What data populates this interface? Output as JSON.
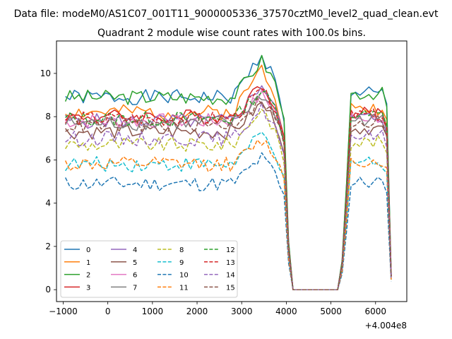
{
  "chart_data": {
    "type": "line",
    "suptitle": "Data file: modeM0/AS1C07_001T11_9000005336_37570cztM0_level2_quad_clean.evt",
    "title": "Quadrant 2 module wise count rates with 100.0s bins.",
    "xlabel": "",
    "ylabel": "",
    "x_offset_label": "+4.004e8",
    "xlim": [
      -1150,
      6700
    ],
    "ylim": [
      -0.55,
      11.5
    ],
    "xticks": [
      -1000,
      0,
      1000,
      2000,
      3000,
      4000,
      5000,
      6000
    ],
    "yticks": [
      0,
      2,
      4,
      6,
      8,
      10
    ],
    "x_tick_labels": [
      "−1000",
      "0",
      "1000",
      "2000",
      "3000",
      "4000",
      "5000",
      "6000"
    ],
    "y_tick_labels": [
      "0",
      "2",
      "4",
      "6",
      "8",
      "10"
    ],
    "x_start": -950,
    "x_step": 100,
    "legend_location": "lower-left",
    "legend_columns": 4,
    "series": [
      {
        "name": "0",
        "color": "#1f77b4",
        "dash": "solid",
        "base": 8.9,
        "peak": 10.9,
        "seed": 1
      },
      {
        "name": "1",
        "color": "#ff7f0e",
        "dash": "solid",
        "base": 8.2,
        "peak": 10.3,
        "seed": 2
      },
      {
        "name": "2",
        "color": "#2ca02c",
        "dash": "solid",
        "base": 8.9,
        "peak": 10.6,
        "seed": 3
      },
      {
        "name": "3",
        "color": "#d62728",
        "dash": "solid",
        "base": 8.0,
        "peak": 9.5,
        "seed": 4
      },
      {
        "name": "4",
        "color": "#9467bd",
        "dash": "solid",
        "base": 7.8,
        "peak": 9.5,
        "seed": 5
      },
      {
        "name": "5",
        "color": "#8c564b",
        "dash": "solid",
        "base": 7.3,
        "peak": 8.6,
        "seed": 6
      },
      {
        "name": "6",
        "color": "#e377c2",
        "dash": "solid",
        "base": 7.8,
        "peak": 9.0,
        "seed": 7
      },
      {
        "name": "7",
        "color": "#7f7f7f",
        "dash": "solid",
        "base": 7.7,
        "peak": 9.0,
        "seed": 8
      },
      {
        "name": "8",
        "color": "#bcbd22",
        "dash": "dashed",
        "base": 6.7,
        "peak": 8.4,
        "seed": 9
      },
      {
        "name": "9",
        "color": "#17becf",
        "dash": "dashed",
        "base": 5.8,
        "peak": 7.2,
        "seed": 10
      },
      {
        "name": "10",
        "color": "#1f77b4",
        "dash": "dashed",
        "base": 4.9,
        "peak": 6.1,
        "seed": 11
      },
      {
        "name": "11",
        "color": "#ff7f0e",
        "dash": "dashed",
        "base": 5.8,
        "peak": 6.9,
        "seed": 12
      },
      {
        "name": "12",
        "color": "#2ca02c",
        "dash": "dashed",
        "base": 7.9,
        "peak": 9.2,
        "seed": 13
      },
      {
        "name": "13",
        "color": "#d62728",
        "dash": "dashed",
        "base": 7.9,
        "peak": 9.2,
        "seed": 14
      },
      {
        "name": "14",
        "color": "#9467bd",
        "dash": "dashed",
        "base": 7.0,
        "peak": 8.4,
        "seed": 15
      },
      {
        "name": "15",
        "color": "#8c564b",
        "dash": "dashed",
        "base": 7.6,
        "peak": 8.8,
        "seed": 16
      }
    ]
  }
}
